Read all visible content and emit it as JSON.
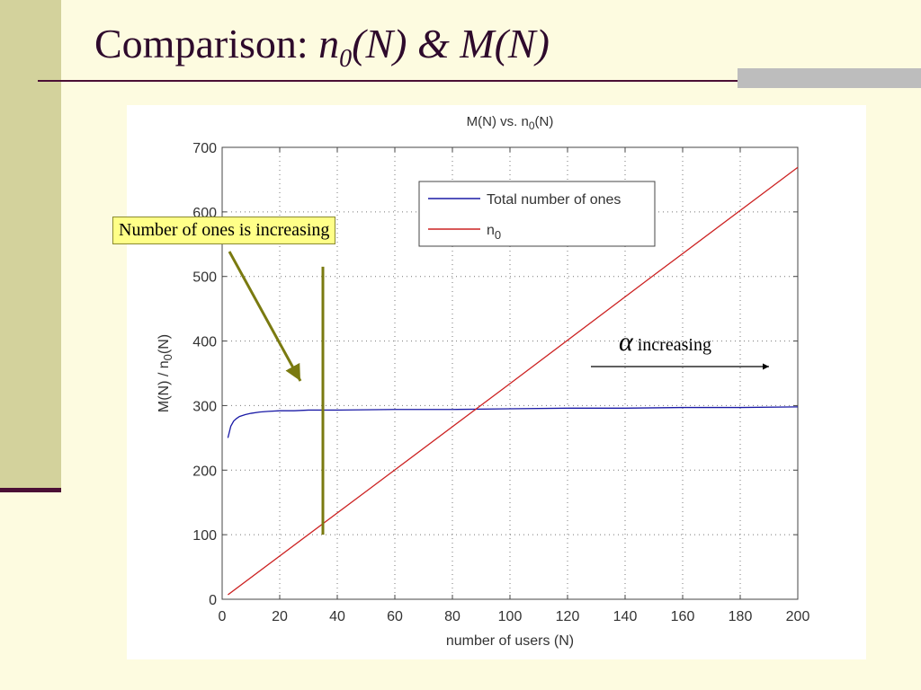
{
  "slide": {
    "title_prefix": "Comparison: ",
    "title_n": "n",
    "title_sub": "0",
    "title_rest": "(N) & M(N)"
  },
  "callout": {
    "text": "Number of ones is increasing"
  },
  "alpha_note": {
    "symbol": "α",
    "text": "increasing"
  },
  "chart_data": {
    "type": "line",
    "title": "M(N) vs. n0(N)",
    "title_parts": {
      "base": "M(N) vs. n",
      "sub": "0",
      "end": "(N)"
    },
    "xlabel": "number of users (N)",
    "ylabel": "M(N) / n0(N)",
    "ylabel_parts": {
      "base": "M(N) / n",
      "sub": "0",
      "end": "(N)"
    },
    "xlim": [
      0,
      200
    ],
    "ylim": [
      0,
      700
    ],
    "xticks": [
      0,
      20,
      40,
      60,
      80,
      100,
      120,
      140,
      160,
      180,
      200
    ],
    "yticks": [
      0,
      100,
      200,
      300,
      400,
      500,
      600,
      700
    ],
    "grid": true,
    "legend_position": "top-right",
    "series": [
      {
        "name": "Total number of ones",
        "color": "#1a1aa6",
        "x": [
          2,
          3,
          4,
          5,
          6,
          8,
          10,
          13,
          16,
          20,
          25,
          30,
          40,
          60,
          80,
          100,
          120,
          140,
          160,
          180,
          200
        ],
        "y": [
          250,
          268,
          276,
          280,
          283,
          286,
          288,
          290,
          291,
          292,
          292,
          293,
          293,
          294,
          294,
          295,
          296,
          296,
          297,
          297,
          298
        ]
      },
      {
        "name": "n0",
        "color": "#cc2222",
        "x": [
          2,
          50,
          100,
          150,
          200
        ],
        "y": [
          7,
          167,
          334,
          502,
          669
        ]
      }
    ],
    "legend": [
      {
        "label": "Total number of ones",
        "color": "#1a1aa6"
      },
      {
        "label": "n",
        "sub": "0",
        "color": "#cc2222"
      }
    ],
    "marker_x": 35
  },
  "colors": {
    "accent": "#4b0f35",
    "sidebar": "#d3d29c",
    "background": "#fdfbe0",
    "annotation": "#7a7a10"
  }
}
